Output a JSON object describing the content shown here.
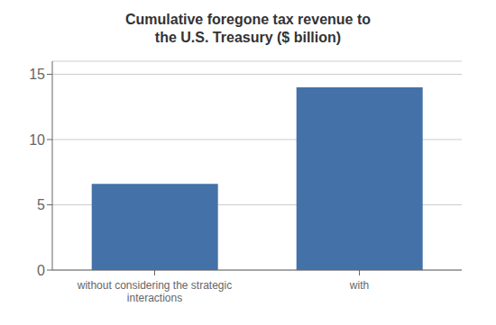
{
  "chart_data": {
    "type": "bar",
    "title": "Cumulative foregone tax revenue to\nthe U.S. Treasury ($ billion)",
    "categories": [
      "without considering the strategic\ninteractions",
      "with"
    ],
    "values": [
      6.6,
      14.0
    ],
    "color": "#4472a8",
    "ylim": [
      0,
      16
    ],
    "yticks": [
      0,
      5,
      10,
      15
    ],
    "grid": true
  }
}
